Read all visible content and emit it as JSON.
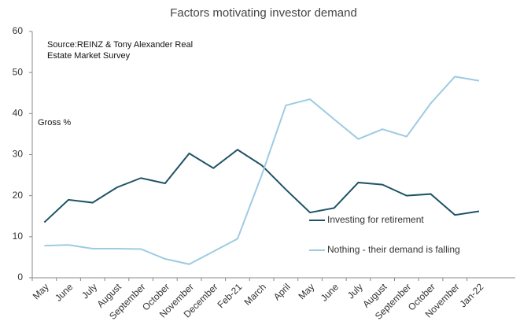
{
  "chart_data": {
    "type": "line",
    "title": "Factors motivating investor demand",
    "annotations": [
      "Source:REINZ & Tony Alexander Real",
      "Estate Market Survey",
      "Gross %"
    ],
    "categories": [
      "May",
      "June",
      "July",
      "August",
      "September",
      "October",
      "November",
      "December",
      "Feb-21",
      "March",
      "April",
      "May",
      "June",
      "July",
      "August",
      "September",
      "October",
      "November",
      "Jan-22"
    ],
    "series": [
      {
        "name": "Investing for retirement",
        "color": "#1f5366",
        "values": [
          13.5,
          19,
          18.3,
          22,
          24.3,
          23,
          30.3,
          26.7,
          31.2,
          27.4,
          21.5,
          15.9,
          17,
          23.2,
          22.7,
          20,
          20.4,
          15.3,
          16.2
        ]
      },
      {
        "name": "Nothing - their demand is falling",
        "color": "#9ecbe2",
        "values": [
          7.8,
          8,
          7.1,
          7.1,
          7,
          4.6,
          3.3,
          6.4,
          9.5,
          25,
          42,
          43.5,
          38.6,
          33.8,
          36.2,
          34.4,
          42.5,
          49,
          48
        ]
      }
    ],
    "ylim": [
      0,
      60
    ],
    "yticks": [
      0,
      10,
      20,
      30,
      40,
      50,
      60
    ],
    "grid": false
  }
}
